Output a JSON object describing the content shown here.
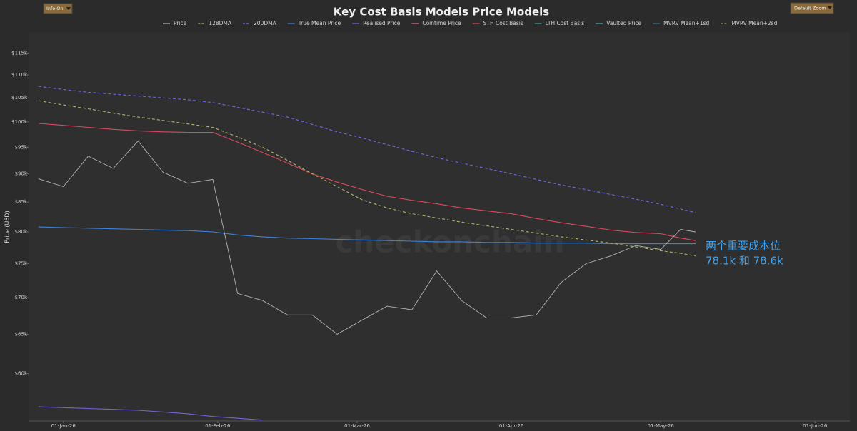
{
  "ui": {
    "info_toggle": "Info On",
    "zoom_select": "Default Zoom"
  },
  "chart_data": {
    "type": "line",
    "title": "Key Cost Basis Models Price Models",
    "y_label": "Price (USD)",
    "watermark": "checkonchain",
    "annotations": [
      "两个重要成本位",
      "78.1k 和 78.6k"
    ],
    "annotation_color": "#3ea2ee",
    "log_y": true,
    "grid": false,
    "legend": "top",
    "x": [
      "2025-12-27",
      "2026-01-01",
      "2026-01-06",
      "2026-01-11",
      "2026-01-16",
      "2026-01-21",
      "2026-01-26",
      "2026-01-31",
      "2026-02-05",
      "2026-02-10",
      "2026-02-15",
      "2026-02-20",
      "2026-02-25",
      "2026-03-02",
      "2026-03-07",
      "2026-03-12",
      "2026-03-17",
      "2026-03-22",
      "2026-03-27",
      "2026-04-01",
      "2026-04-06",
      "2026-04-11",
      "2026-04-16",
      "2026-04-21",
      "2026-04-26",
      "2026-05-01",
      "2026-05-05",
      "2026-05-08"
    ],
    "xlim": [
      "2025-12-25",
      "2026-06-08"
    ],
    "xticks": [
      {
        "value": "2026-01-01",
        "label": "01-Jan-26"
      },
      {
        "value": "2026-02-01",
        "label": "01-Feb-26"
      },
      {
        "value": "2026-03-01",
        "label": "01-Mar-26"
      },
      {
        "value": "2026-04-01",
        "label": "01-Apr-26"
      },
      {
        "value": "2026-05-01",
        "label": "01-May-26"
      },
      {
        "value": "2026-06-01",
        "label": "01-Jun-26"
      }
    ],
    "ylim": [
      54500,
      120000
    ],
    "yticks": [
      {
        "value": 60000,
        "label": "$60k"
      },
      {
        "value": 65000,
        "label": "$65k"
      },
      {
        "value": 70000,
        "label": "$70k"
      },
      {
        "value": 75000,
        "label": "$75k"
      },
      {
        "value": 80000,
        "label": "$80k"
      },
      {
        "value": 85000,
        "label": "$85k"
      },
      {
        "value": 90000,
        "label": "$90k"
      },
      {
        "value": 95000,
        "label": "$95k"
      },
      {
        "value": 100000,
        "label": "$100k"
      },
      {
        "value": 105000,
        "label": "$105k"
      },
      {
        "value": 110000,
        "label": "$110k"
      },
      {
        "value": 115000,
        "label": "$115k"
      }
    ],
    "series": [
      {
        "name": "Price",
        "color": "#b4b4b4",
        "dash": false,
        "values": [
          89100,
          87700,
          93300,
          91000,
          96200,
          90300,
          88300,
          89000,
          70600,
          69600,
          67600,
          67600,
          65000,
          66900,
          68800,
          68300,
          73900,
          69600,
          67200,
          67200,
          67600,
          72200,
          75000,
          76200,
          77800,
          77200,
          80400,
          80000
        ]
      },
      {
        "name": "128DMA",
        "color": "#b3b36a",
        "dash": true,
        "values": [
          104400,
          103500,
          102700,
          101800,
          101000,
          100300,
          99600,
          98900,
          97000,
          95000,
          92500,
          90000,
          87700,
          85400,
          84000,
          83000,
          82300,
          81600,
          81000,
          80400,
          79800,
          79200,
          78700,
          78200,
          77600,
          77000,
          76600,
          76200
        ]
      },
      {
        "name": "200DMA",
        "color": "#6b6be6",
        "dash": true,
        "values": [
          107500,
          106800,
          106200,
          105800,
          105400,
          105000,
          104600,
          104000,
          103000,
          102000,
          101000,
          99500,
          98000,
          96800,
          95500,
          94200,
          93000,
          92000,
          91000,
          90000,
          89000,
          88000,
          87200,
          86300,
          85500,
          84600,
          83800,
          83200
        ]
      },
      {
        "name": "True Mean Price",
        "color": "#3f82dc",
        "dash": false,
        "values": [
          80800,
          80700,
          80600,
          80500,
          80400,
          80300,
          80200,
          80000,
          79500,
          79200,
          79000,
          78900,
          78800,
          78700,
          78600,
          78500,
          78400,
          78400,
          78300,
          78300,
          78200,
          78200,
          78200,
          78100,
          78100,
          78100,
          78100,
          78100
        ]
      },
      {
        "name": "Realised Price",
        "color": "#7a62d6",
        "dash": false,
        "values": [
          56100,
          56000,
          55900,
          55800,
          55700,
          55500,
          55300,
          55000,
          54800,
          54600,
          null,
          null,
          null,
          null,
          null,
          null,
          null,
          null,
          null,
          null,
          null,
          null,
          null,
          null,
          null,
          null,
          null,
          null
        ]
      },
      {
        "name": "Cointime Price",
        "color": "#e0708a",
        "dash": false,
        "values": [
          null,
          null,
          null,
          null,
          null,
          null,
          null,
          null,
          null,
          null,
          null,
          null,
          null,
          null,
          null,
          null,
          null,
          null,
          null,
          null,
          null,
          null,
          null,
          null,
          null,
          null,
          null,
          null
        ]
      },
      {
        "name": "STH Cost Basis",
        "color": "#d9485e",
        "dash": false,
        "values": [
          99700,
          99300,
          98900,
          98500,
          98200,
          98000,
          97900,
          97900,
          96000,
          94000,
          92000,
          90000,
          88500,
          87200,
          86000,
          85300,
          84700,
          84000,
          83500,
          83000,
          82200,
          81500,
          80900,
          80300,
          79900,
          79700,
          79000,
          78600
        ]
      },
      {
        "name": "LTH Cost Basis",
        "color": "#3ea39c",
        "dash": false,
        "values": [
          null,
          null,
          null,
          null,
          null,
          null,
          null,
          null,
          null,
          null,
          null,
          null,
          null,
          null,
          null,
          null,
          null,
          null,
          null,
          null,
          null,
          null,
          null,
          null,
          null,
          null,
          null,
          null
        ]
      },
      {
        "name": "Vaulted Price",
        "color": "#4fb0b0",
        "dash": false,
        "values": [
          null,
          null,
          null,
          null,
          null,
          null,
          null,
          null,
          null,
          null,
          null,
          null,
          null,
          null,
          null,
          null,
          null,
          null,
          null,
          null,
          null,
          null,
          null,
          null,
          null,
          null,
          null,
          null
        ]
      },
      {
        "name": "MVRV Mean+1sd",
        "color": "#3b6f8f",
        "dash": false,
        "values": [
          null,
          null,
          null,
          null,
          null,
          null,
          null,
          null,
          null,
          null,
          null,
          null,
          null,
          null,
          null,
          null,
          null,
          null,
          null,
          null,
          null,
          null,
          null,
          null,
          null,
          null,
          null,
          null
        ]
      },
      {
        "name": "MVRV Mean+2sd",
        "color": "#8f8f5c",
        "dash": true,
        "values": [
          null,
          null,
          null,
          null,
          null,
          null,
          null,
          null,
          null,
          null,
          null,
          null,
          null,
          null,
          null,
          null,
          null,
          null,
          null,
          null,
          null,
          null,
          null,
          null,
          null,
          null,
          null,
          null
        ]
      }
    ]
  }
}
